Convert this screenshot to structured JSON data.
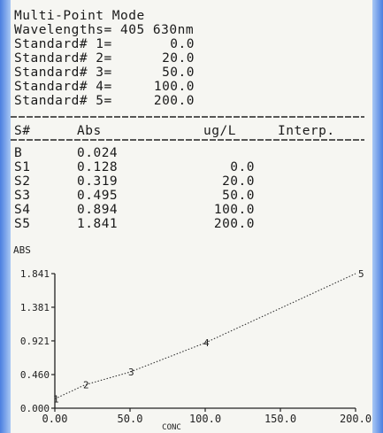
{
  "header": {
    "mode": "Multi-Point Mode",
    "wavelengths_label": "Wavelengths=",
    "wavelengths_value": "405 630nm"
  },
  "standards": [
    {
      "label": "Standard# 1=",
      "value": "0.0"
    },
    {
      "label": "Standard# 2=",
      "value": "20.0"
    },
    {
      "label": "Standard# 3=",
      "value": "50.0"
    },
    {
      "label": "Standard# 4=",
      "value": "100.0"
    },
    {
      "label": "Standard# 5=",
      "value": "200.0"
    }
  ],
  "table": {
    "headers": [
      "S#",
      "Abs",
      "ug/L",
      "Interp."
    ],
    "rows": [
      {
        "s": "B",
        "abs": "0.024",
        "conc": ""
      },
      {
        "s": "S1",
        "abs": "0.128",
        "conc": "0.0"
      },
      {
        "s": "S2",
        "abs": "0.319",
        "conc": "20.0"
      },
      {
        "s": "S3",
        "abs": "0.495",
        "conc": "50.0"
      },
      {
        "s": "S4",
        "abs": "0.894",
        "conc": "100.0"
      },
      {
        "s": "S5",
        "abs": "1.841",
        "conc": "200.0"
      }
    ]
  },
  "chart_data": {
    "type": "line",
    "ylabel": "ABS",
    "xlabel": "CONC",
    "xlim": [
      0,
      200
    ],
    "ylim": [
      0,
      1.841
    ],
    "x_ticks": [
      "0.00",
      "50.0",
      "100.0",
      "150.0",
      "200.0"
    ],
    "y_ticks": [
      "0.000",
      "0.460",
      "0.921",
      "1.381",
      "1.841"
    ],
    "points": [
      {
        "label": "1",
        "x": 0.0,
        "y": 0.128
      },
      {
        "label": "2",
        "x": 20.0,
        "y": 0.319
      },
      {
        "label": "3",
        "x": 50.0,
        "y": 0.495
      },
      {
        "label": "4",
        "x": 100.0,
        "y": 0.894
      },
      {
        "label": "5",
        "x": 200.0,
        "y": 1.841
      }
    ],
    "line_style": "dotted",
    "grid": false
  }
}
